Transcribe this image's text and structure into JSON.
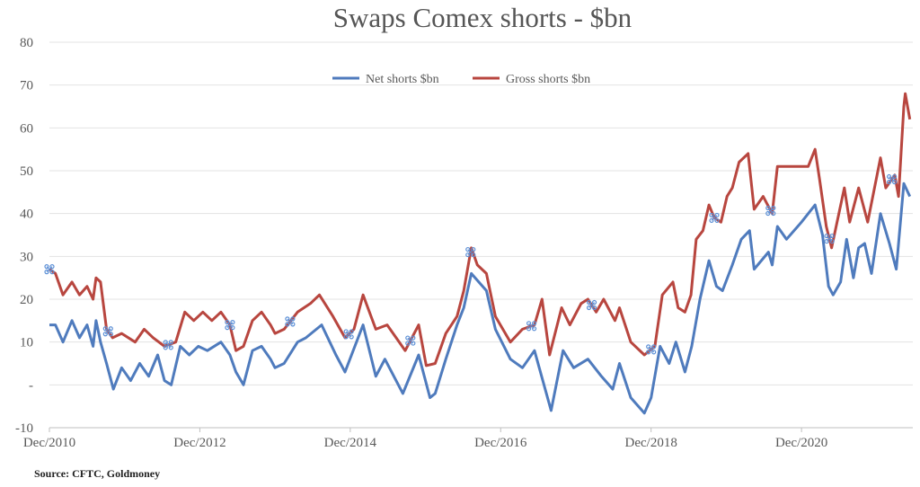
{
  "chart_data": {
    "type": "line",
    "title": "Swaps Comex shorts - $bn",
    "xlabel": "",
    "ylabel": "",
    "xlim": [
      2010.92,
      2022.4
    ],
    "ylim": [
      -10,
      80
    ],
    "yticks": [
      -10,
      0,
      10,
      20,
      30,
      40,
      50,
      60,
      70,
      80
    ],
    "ytick_labels": [
      "-10",
      "-",
      "10",
      "20",
      "30",
      "40",
      "50",
      "60",
      "70",
      "80"
    ],
    "xticks": [
      2010.92,
      2012.92,
      2014.92,
      2016.92,
      2018.92,
      2020.92
    ],
    "xtick_labels": [
      "Dec/2010",
      "Dec/2012",
      "Dec/2014",
      "Dec/2016",
      "Dec/2018",
      "Dec/2020"
    ],
    "grid": true,
    "legend_position": "top-center",
    "series": [
      {
        "name": "Net shorts $bn",
        "color": "#4f7bbd",
        "x": [
          2010.92,
          2011.0,
          2011.1,
          2011.22,
          2011.32,
          2011.42,
          2011.5,
          2011.54,
          2011.6,
          2011.68,
          2011.77,
          2011.88,
          2012.0,
          2012.12,
          2012.24,
          2012.36,
          2012.45,
          2012.54,
          2012.66,
          2012.78,
          2012.9,
          2013.02,
          2013.2,
          2013.32,
          2013.4,
          2013.5,
          2013.62,
          2013.74,
          2013.86,
          2013.92,
          2014.04,
          2014.22,
          2014.33,
          2014.54,
          2014.73,
          2014.85,
          2015.09,
          2015.26,
          2015.38,
          2015.62,
          2015.83,
          2015.98,
          2016.05,
          2016.19,
          2016.34,
          2016.43,
          2016.53,
          2016.73,
          2016.85,
          2017.05,
          2017.21,
          2017.37,
          2017.59,
          2017.75,
          2017.89,
          2018.08,
          2018.26,
          2018.41,
          2018.5,
          2018.65,
          2018.83,
          2018.92,
          2019.04,
          2019.16,
          2019.25,
          2019.37,
          2019.46,
          2019.57,
          2019.69,
          2019.79,
          2019.87,
          2020.0,
          2020.12,
          2020.23,
          2020.29,
          2020.48,
          2020.53,
          2020.6,
          2020.72,
          2020.92,
          2021.1,
          2021.2,
          2021.28,
          2021.34,
          2021.44,
          2021.52,
          2021.61,
          2021.68,
          2021.76,
          2021.85,
          2021.97,
          2022.09,
          2022.18,
          2022.28,
          2022.36
        ],
        "values": [
          14,
          14,
          10,
          15,
          11,
          14,
          9,
          15,
          10,
          5,
          -1,
          4,
          1,
          5,
          2,
          7,
          1,
          0,
          9,
          7,
          9,
          8,
          10,
          7,
          3,
          0,
          8,
          9,
          6,
          4,
          5,
          10,
          11,
          14,
          7,
          3,
          14,
          2,
          6,
          -2,
          7,
          -3,
          -2,
          6,
          14,
          18,
          26,
          22,
          13,
          6,
          4,
          8,
          -6,
          8,
          4,
          6,
          2,
          -1,
          5,
          -3,
          -6.6,
          -3,
          9,
          5,
          10,
          3,
          9,
          20,
          29,
          23,
          22,
          28,
          34,
          36,
          27,
          31,
          28,
          37,
          34,
          38,
          42,
          35,
          23,
          21,
          24,
          34,
          25,
          32,
          33,
          26,
          40,
          33,
          27,
          47,
          44
        ]
      },
      {
        "name": "Gross shorts $bn",
        "color": "#b8463f",
        "x": [
          2010.92,
          2011.0,
          2011.1,
          2011.22,
          2011.32,
          2011.42,
          2011.5,
          2011.54,
          2011.6,
          2011.68,
          2011.76,
          2011.88,
          2012.06,
          2012.18,
          2012.3,
          2012.45,
          2012.6,
          2012.72,
          2012.84,
          2012.96,
          2013.08,
          2013.2,
          2013.32,
          2013.4,
          2013.5,
          2013.62,
          2013.74,
          2013.86,
          2013.92,
          2014.04,
          2014.22,
          2014.39,
          2014.51,
          2014.69,
          2014.85,
          2014.97,
          2015.09,
          2015.26,
          2015.41,
          2015.65,
          2015.83,
          2015.93,
          2016.05,
          2016.19,
          2016.34,
          2016.43,
          2016.53,
          2016.61,
          2016.73,
          2016.85,
          2017.05,
          2017.21,
          2017.37,
          2017.47,
          2017.57,
          2017.73,
          2017.84,
          2017.99,
          2018.08,
          2018.19,
          2018.29,
          2018.44,
          2018.5,
          2018.65,
          2018.83,
          2018.97,
          2019.07,
          2019.21,
          2019.28,
          2019.37,
          2019.45,
          2019.52,
          2019.61,
          2019.69,
          2019.76,
          2019.85,
          2019.93,
          2020.0,
          2020.09,
          2020.21,
          2020.29,
          2020.41,
          2020.53,
          2020.6,
          2020.8,
          2021.01,
          2021.1,
          2021.16,
          2021.25,
          2021.32,
          2021.49,
          2021.56,
          2021.68,
          2021.8,
          2021.97,
          2022.04,
          2022.16,
          2022.21,
          2022.28,
          2022.3,
          2022.36
        ],
        "values": [
          27,
          26,
          21,
          24,
          21,
          23,
          20,
          25,
          24,
          13,
          11,
          12,
          10,
          13,
          11,
          9,
          10,
          17,
          15,
          17,
          15,
          17,
          14,
          8,
          9,
          15,
          17,
          14,
          12,
          13,
          17,
          19,
          21,
          16,
          11,
          13,
          21,
          13,
          14,
          8,
          14,
          4.5,
          5,
          12,
          16,
          22,
          32,
          28,
          26,
          16,
          10,
          13,
          14,
          20,
          7,
          18,
          14,
          19,
          20,
          17,
          20,
          15,
          18,
          10,
          7,
          9,
          21,
          24,
          18,
          17,
          21,
          34,
          36,
          42,
          39,
          38,
          44,
          46,
          52,
          54,
          41,
          44,
          40,
          51,
          51,
          51,
          55,
          48,
          37,
          32,
          46,
          38,
          46,
          38,
          53,
          46,
          49,
          44,
          65,
          68,
          62
        ]
      }
    ],
    "marker_x": [
      2010.92,
      2011.7,
      2012.5,
      2013.32,
      2014.12,
      2014.9,
      2015.72,
      2016.52,
      2017.33,
      2018.13,
      2018.92,
      2019.76,
      2020.51,
      2021.29,
      2022.12
    ],
    "source": "Source: CFTC, Goldmoney"
  }
}
